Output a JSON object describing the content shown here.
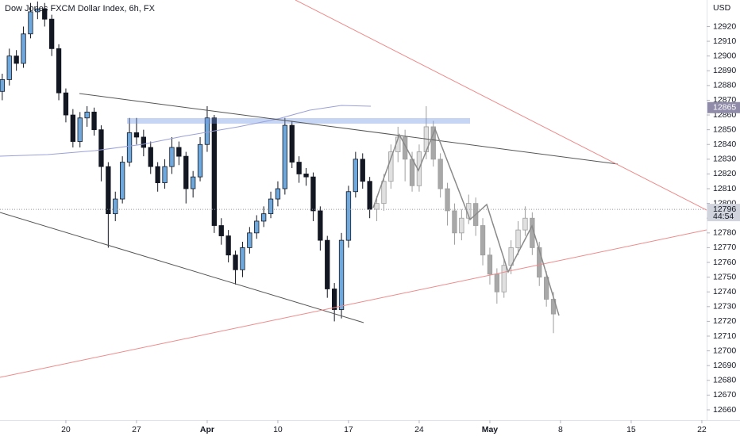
{
  "chart_data": {
    "type": "candlestick",
    "title": "Dow Jones FXCM Dollar Index, 6h, FX",
    "currency": "USD",
    "x": [
      -4.5,
      -4,
      -3.5,
      -3,
      -2.5,
      -2,
      -1.5,
      -1,
      -0.5,
      0,
      0.5,
      1,
      1.5,
      2,
      2.5,
      3,
      3.5,
      4,
      4.5,
      5,
      5.5,
      6,
      6.5,
      7,
      7.5,
      8,
      8.5,
      9,
      9.5,
      10,
      10.5,
      11,
      11.5,
      12,
      12.5,
      13,
      13.5,
      14,
      14.5,
      15,
      15.5,
      16,
      16.5,
      17,
      17.5,
      18,
      18.5,
      19,
      19.5,
      20,
      20.5,
      21,
      21.5
    ],
    "open": [
      12876,
      12884,
      12900,
      12895,
      12915,
      12930,
      12932,
      12925,
      12905,
      12875,
      12860,
      12842,
      12858,
      12862,
      12850,
      12825,
      12793,
      12803,
      12828,
      12848,
      12845,
      12838,
      12825,
      12814,
      12825,
      12838,
      12832,
      12810,
      12818,
      12840,
      12858,
      12785,
      12778,
      12765,
      12755,
      12770,
      12780,
      12788,
      12793,
      12803,
      12810,
      12853,
      12828,
      12820,
      12818,
      12795,
      12775,
      12742,
      12728,
      12775,
      12808,
      12830,
      12815
    ],
    "high": [
      12888,
      12905,
      12904,
      12920,
      12936,
      12937,
      12936,
      12928,
      12908,
      12878,
      12864,
      12862,
      12866,
      12865,
      12853,
      12828,
      12808,
      12832,
      12858,
      12858,
      12850,
      12842,
      12828,
      12830,
      12845,
      12842,
      12835,
      12822,
      12845,
      12866,
      12860,
      12790,
      12782,
      12768,
      12774,
      12784,
      12792,
      12798,
      12808,
      12815,
      12858,
      12856,
      12832,
      12824,
      12821,
      12798,
      12778,
      12746,
      12780,
      12812,
      12835,
      12834,
      12818
    ],
    "low": [
      12870,
      12880,
      12890,
      12892,
      12912,
      12925,
      12920,
      12900,
      12870,
      12855,
      12838,
      12838,
      12852,
      12846,
      12815,
      12770,
      12788,
      12800,
      12825,
      12840,
      12832,
      12820,
      12808,
      12810,
      12820,
      12826,
      12800,
      12804,
      12815,
      12835,
      12780,
      12772,
      12760,
      12745,
      12750,
      12766,
      12776,
      12784,
      12790,
      12798,
      12806,
      12824,
      12814,
      12812,
      12788,
      12768,
      12736,
      12720,
      12722,
      12770,
      12804,
      12810,
      12790
    ],
    "close": [
      12884,
      12900,
      12895,
      12915,
      12930,
      12932,
      12925,
      12905,
      12875,
      12860,
      12842,
      12858,
      12862,
      12850,
      12825,
      12793,
      12803,
      12828,
      12848,
      12845,
      12838,
      12825,
      12814,
      12825,
      12838,
      12832,
      12810,
      12818,
      12840,
      12858,
      12785,
      12778,
      12765,
      12755,
      12770,
      12780,
      12788,
      12793,
      12803,
      12810,
      12853,
      12828,
      12820,
      12818,
      12795,
      12775,
      12742,
      12728,
      12775,
      12808,
      12830,
      12815,
      12796
    ],
    "forecast": {
      "x": [
        22,
        22.5,
        23,
        23.5,
        24,
        24.5,
        25,
        25.5,
        26,
        26.5,
        27,
        27.5,
        28,
        28.5,
        29,
        29.5,
        30,
        30.5,
        31,
        31.5,
        32,
        32.5,
        33,
        33.5,
        34,
        34.5
      ],
      "open": [
        12796,
        12800,
        12815,
        12835,
        12845,
        12830,
        12812,
        12835,
        12852,
        12830,
        12810,
        12795,
        12780,
        12790,
        12800,
        12785,
        12765,
        12752,
        12740,
        12758,
        12770,
        12782,
        12790,
        12770,
        12750,
        12735
      ],
      "high": [
        12805,
        12820,
        12840,
        12852,
        12850,
        12835,
        12840,
        12866,
        12856,
        12834,
        12814,
        12800,
        12796,
        12806,
        12804,
        12790,
        12770,
        12756,
        12762,
        12775,
        12788,
        12798,
        12794,
        12774,
        12754,
        12740
      ],
      "low": [
        12788,
        12795,
        12810,
        12828,
        12815,
        12808,
        12808,
        12830,
        12825,
        12804,
        12785,
        12772,
        12775,
        12786,
        12778,
        12758,
        12745,
        12732,
        12736,
        12752,
        12765,
        12778,
        12765,
        12744,
        12730,
        12712
      ],
      "close": [
        12800,
        12815,
        12835,
        12845,
        12830,
        12812,
        12835,
        12852,
        12830,
        12810,
        12795,
        12780,
        12790,
        12800,
        12785,
        12765,
        12752,
        12740,
        12758,
        12770,
        12782,
        12790,
        12770,
        12750,
        12735,
        12725
      ]
    },
    "up_color": "#6fa8dc",
    "down_color": "#131722",
    "ghost_up_color": "#e0e0e0",
    "ghost_down_color": "#a8a8a8",
    "xlim": [
      -4.66,
      45.34
    ],
    "xticks": [
      {
        "value": 0,
        "label": "20"
      },
      {
        "value": 5,
        "label": "27"
      },
      {
        "value": 10,
        "label": "Apr"
      },
      {
        "value": 15,
        "label": "10"
      },
      {
        "value": 20,
        "label": "17"
      },
      {
        "value": 25,
        "label": "24"
      },
      {
        "value": 30,
        "label": "May"
      },
      {
        "value": 35,
        "label": "8"
      },
      {
        "value": 40,
        "label": "15"
      },
      {
        "value": 45,
        "label": "22"
      }
    ],
    "ylim": [
      12653,
      12938
    ],
    "yticks": [
      12660,
      12670,
      12680,
      12690,
      12700,
      12710,
      12720,
      12730,
      12740,
      12750,
      12760,
      12770,
      12780,
      12790,
      12800,
      12810,
      12820,
      12830,
      12840,
      12850,
      12860,
      12870,
      12880,
      12890,
      12900,
      12910,
      12920
    ],
    "marker_price": 12865,
    "last_price": 12796,
    "countdown": "44:54"
  }
}
